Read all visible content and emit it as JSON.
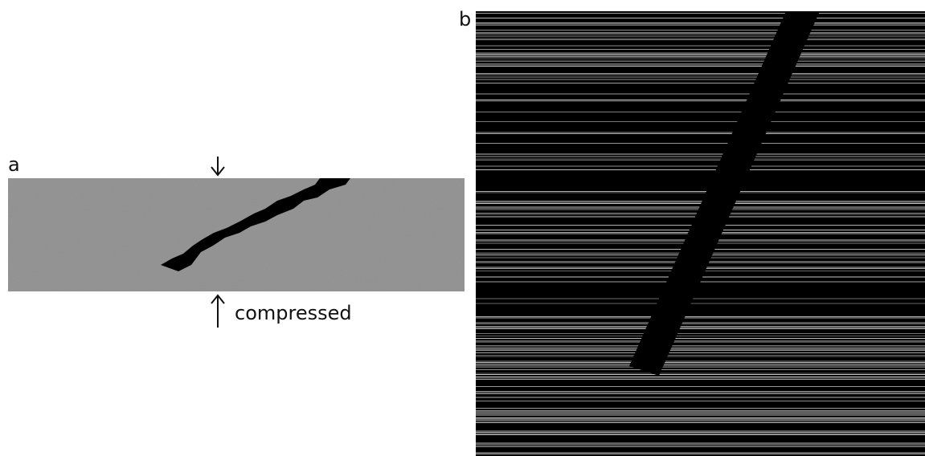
{
  "panels": [
    {
      "label": "a",
      "annotation": "compressed"
    },
    {
      "label": "b"
    }
  ]
}
